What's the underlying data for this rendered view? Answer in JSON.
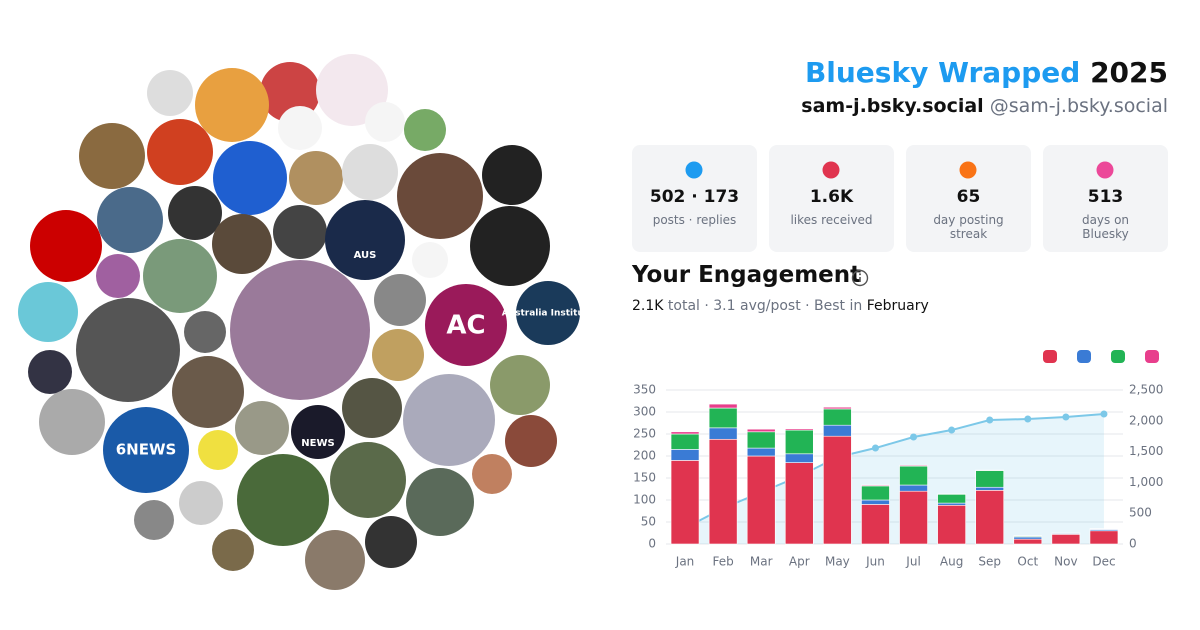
{
  "header": {
    "title": "Bluesky Wrapped",
    "year": "2025",
    "display_name": "sam-j.bsky.social",
    "handle": "@sam-j.bsky.social"
  },
  "avatar_labels": [
    "AC",
    "6NEWS",
    "AUS",
    "NEWS",
    "Australia Institute"
  ],
  "stats": [
    {
      "value": "502 · 173",
      "label": "posts · replies"
    },
    {
      "value": "1.6K",
      "label": "likes received"
    },
    {
      "value": "65",
      "label": "day posting streak"
    },
    {
      "value": "513",
      "label": "days on Bluesky"
    }
  ],
  "engagement": {
    "title": "Your Engagement",
    "total": "2.1K",
    "summary": "total · 3.1 avg/post · Best in",
    "best": "February"
  },
  "chart_data": {
    "type": "bar",
    "categories": [
      "Jan",
      "Feb",
      "Mar",
      "Apr",
      "May",
      "Jun",
      "Jul",
      "Aug",
      "Sep",
      "Oct",
      "Nov",
      "Dec"
    ],
    "series": [
      {
        "color": "#e0344f",
        "values": [
          190,
          238,
          200,
          185,
          245,
          90,
          120,
          88,
          122,
          11,
          22,
          30
        ]
      },
      {
        "color": "#3a7bd5",
        "values": [
          25,
          26,
          18,
          20,
          25,
          10,
          14,
          5,
          7,
          5,
          2,
          3
        ]
      },
      {
        "color": "#22b455",
        "values": [
          35,
          45,
          37,
          54,
          37,
          32,
          43,
          20,
          38,
          2,
          1,
          1
        ]
      },
      {
        "color": "#e83e8c",
        "values": [
          5,
          9,
          6,
          3,
          4,
          2,
          2,
          1,
          1,
          1,
          0,
          1
        ]
      },
      {
        "color": "#7cc8e8",
        "axis": "y2",
        "values": [
          260,
          580,
          840,
          1100,
          1410,
          1558,
          1737,
          1850,
          2013,
          2029,
          2062,
          2110
        ]
      }
    ],
    "ylim": [
      0,
      350
    ],
    "yticks": [
      0,
      50,
      100,
      150,
      200,
      250,
      300,
      350
    ],
    "y2lim": [
      0,
      2500
    ],
    "y2ticks": [
      0,
      {
        "value": 500,
        "label": "500"
      },
      {
        "value": 1000,
        "label": "1,000"
      },
      {
        "value": 1500,
        "label": "1,500"
      },
      {
        "value": 2000,
        "label": "2,000"
      },
      {
        "value": 2500,
        "label": "2,500"
      }
    ],
    "grid": true
  }
}
